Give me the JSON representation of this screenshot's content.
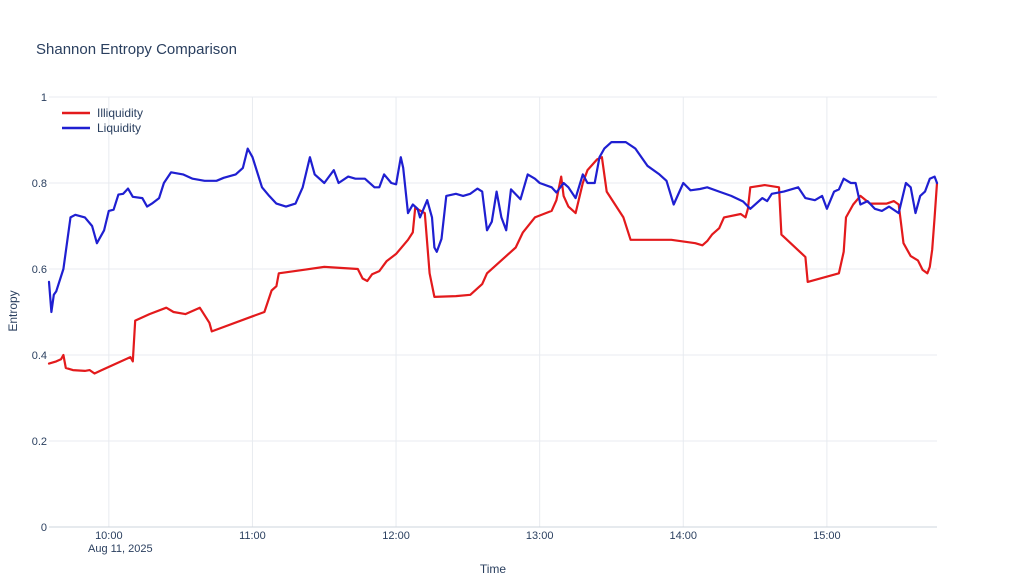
{
  "chart_data": {
    "type": "line",
    "title": "Shannon Entropy Comparison",
    "xlabel": "Time",
    "ylabel": "Entropy",
    "date_label": "Aug 11, 2025",
    "x_ticks": [
      "10:00",
      "11:00",
      "12:00",
      "13:00",
      "14:00",
      "15:00"
    ],
    "y_ticks": [
      "0",
      "0.2",
      "0.4",
      "0.6",
      "0.8",
      "1"
    ],
    "ylim": [
      0,
      1
    ],
    "xlim": [
      "09:35",
      "15:46"
    ],
    "grid": true,
    "legend_position": "top-left",
    "series": [
      {
        "name": "Illiquidity",
        "color": "#e31a1c",
        "points": [
          [
            "09:35",
            0.38
          ],
          [
            "09:38",
            0.385
          ],
          [
            "09:40",
            0.39
          ],
          [
            "09:41",
            0.4
          ],
          [
            "09:42",
            0.37
          ],
          [
            "09:45",
            0.365
          ],
          [
            "09:50",
            0.363
          ],
          [
            "09:52",
            0.365
          ],
          [
            "09:54",
            0.357
          ],
          [
            "09:57",
            0.365
          ],
          [
            "10:03",
            0.38
          ],
          [
            "10:09",
            0.395
          ],
          [
            "10:10",
            0.385
          ],
          [
            "10:11",
            0.48
          ],
          [
            "10:17",
            0.495
          ],
          [
            "10:24",
            0.51
          ],
          [
            "10:27",
            0.5
          ],
          [
            "10:32",
            0.495
          ],
          [
            "10:38",
            0.51
          ],
          [
            "10:42",
            0.475
          ],
          [
            "10:43",
            0.455
          ],
          [
            "11:00",
            0.49
          ],
          [
            "11:05",
            0.5
          ],
          [
            "11:08",
            0.55
          ],
          [
            "11:10",
            0.56
          ],
          [
            "11:11",
            0.59
          ],
          [
            "11:20",
            0.597
          ],
          [
            "11:30",
            0.605
          ],
          [
            "11:44",
            0.6
          ],
          [
            "11:46",
            0.578
          ],
          [
            "11:48",
            0.572
          ],
          [
            "11:50",
            0.588
          ],
          [
            "11:53",
            0.595
          ],
          [
            "11:56",
            0.618
          ],
          [
            "12:00",
            0.635
          ],
          [
            "12:05",
            0.668
          ],
          [
            "12:07",
            0.685
          ],
          [
            "12:08",
            0.742
          ],
          [
            "12:12",
            0.73
          ],
          [
            "12:14",
            0.59
          ],
          [
            "12:16",
            0.535
          ],
          [
            "12:25",
            0.537
          ],
          [
            "12:31",
            0.54
          ],
          [
            "12:36",
            0.565
          ],
          [
            "12:38",
            0.59
          ],
          [
            "12:50",
            0.65
          ],
          [
            "12:53",
            0.685
          ],
          [
            "12:58",
            0.72
          ],
          [
            "13:05",
            0.735
          ],
          [
            "13:07",
            0.76
          ],
          [
            "13:09",
            0.815
          ],
          [
            "13:10",
            0.77
          ],
          [
            "13:12",
            0.745
          ],
          [
            "13:15",
            0.73
          ],
          [
            "13:18",
            0.8
          ],
          [
            "13:20",
            0.83
          ],
          [
            "13:24",
            0.855
          ],
          [
            "13:26",
            0.86
          ],
          [
            "13:28",
            0.78
          ],
          [
            "13:35",
            0.72
          ],
          [
            "13:38",
            0.668
          ],
          [
            "13:55",
            0.668
          ],
          [
            "14:05",
            0.66
          ],
          [
            "14:08",
            0.655
          ],
          [
            "14:10",
            0.665
          ],
          [
            "14:12",
            0.68
          ],
          [
            "14:15",
            0.695
          ],
          [
            "14:17",
            0.72
          ],
          [
            "14:24",
            0.728
          ],
          [
            "14:26",
            0.72
          ],
          [
            "14:27",
            0.74
          ],
          [
            "14:28",
            0.79
          ],
          [
            "14:34",
            0.795
          ],
          [
            "14:40",
            0.79
          ],
          [
            "14:41",
            0.68
          ],
          [
            "14:51",
            0.628
          ],
          [
            "14:52",
            0.57
          ],
          [
            "15:05",
            0.59
          ],
          [
            "15:07",
            0.64
          ],
          [
            "15:08",
            0.72
          ],
          [
            "15:11",
            0.75
          ],
          [
            "15:14",
            0.77
          ],
          [
            "15:18",
            0.752
          ],
          [
            "15:22",
            0.752
          ],
          [
            "15:25",
            0.752
          ],
          [
            "15:28",
            0.758
          ],
          [
            "15:30",
            0.75
          ],
          [
            "15:32",
            0.66
          ],
          [
            "15:35",
            0.63
          ],
          [
            "15:38",
            0.62
          ],
          [
            "15:40",
            0.598
          ],
          [
            "15:42",
            0.59
          ],
          [
            "15:43",
            0.605
          ],
          [
            "15:44",
            0.645
          ],
          [
            "15:45",
            0.72
          ],
          [
            "15:46",
            0.8
          ]
        ]
      },
      {
        "name": "Liquidity",
        "color": "#1f1fd1",
        "points": [
          [
            "09:35",
            0.57
          ],
          [
            "09:36",
            0.5
          ],
          [
            "09:37",
            0.54
          ],
          [
            "09:38",
            0.548
          ],
          [
            "09:41",
            0.6
          ],
          [
            "09:44",
            0.72
          ],
          [
            "09:46",
            0.726
          ],
          [
            "09:50",
            0.72
          ],
          [
            "09:53",
            0.7
          ],
          [
            "09:55",
            0.66
          ],
          [
            "09:58",
            0.69
          ],
          [
            "10:00",
            0.735
          ],
          [
            "10:02",
            0.738
          ],
          [
            "10:04",
            0.773
          ],
          [
            "10:06",
            0.775
          ],
          [
            "10:08",
            0.787
          ],
          [
            "10:10",
            0.768
          ],
          [
            "10:14",
            0.765
          ],
          [
            "10:16",
            0.745
          ],
          [
            "10:18",
            0.752
          ],
          [
            "10:21",
            0.765
          ],
          [
            "10:23",
            0.8
          ],
          [
            "10:26",
            0.825
          ],
          [
            "10:31",
            0.82
          ],
          [
            "10:35",
            0.81
          ],
          [
            "10:40",
            0.805
          ],
          [
            "10:45",
            0.805
          ],
          [
            "10:48",
            0.812
          ],
          [
            "10:53",
            0.82
          ],
          [
            "10:56",
            0.835
          ],
          [
            "10:58",
            0.88
          ],
          [
            "11:00",
            0.86
          ],
          [
            "11:04",
            0.79
          ],
          [
            "11:07",
            0.77
          ],
          [
            "11:10",
            0.752
          ],
          [
            "11:14",
            0.745
          ],
          [
            "11:18",
            0.752
          ],
          [
            "11:21",
            0.79
          ],
          [
            "11:24",
            0.86
          ],
          [
            "11:26",
            0.82
          ],
          [
            "11:30",
            0.8
          ],
          [
            "11:34",
            0.83
          ],
          [
            "11:36",
            0.8
          ],
          [
            "11:40",
            0.815
          ],
          [
            "11:43",
            0.81
          ],
          [
            "11:47",
            0.81
          ],
          [
            "11:51",
            0.79
          ],
          [
            "11:53",
            0.79
          ],
          [
            "11:55",
            0.82
          ],
          [
            "11:58",
            0.8
          ],
          [
            "12:00",
            0.797
          ],
          [
            "12:02",
            0.86
          ],
          [
            "12:03",
            0.835
          ],
          [
            "12:05",
            0.73
          ],
          [
            "12:06",
            0.74
          ],
          [
            "12:07",
            0.75
          ],
          [
            "12:09",
            0.74
          ],
          [
            "12:10",
            0.72
          ],
          [
            "12:13",
            0.76
          ],
          [
            "12:15",
            0.72
          ],
          [
            "12:16",
            0.65
          ],
          [
            "12:17",
            0.64
          ],
          [
            "12:19",
            0.67
          ],
          [
            "12:21",
            0.77
          ],
          [
            "12:25",
            0.775
          ],
          [
            "12:28",
            0.77
          ],
          [
            "12:31",
            0.775
          ],
          [
            "12:34",
            0.787
          ],
          [
            "12:36",
            0.78
          ],
          [
            "12:38",
            0.69
          ],
          [
            "12:40",
            0.71
          ],
          [
            "12:42",
            0.78
          ],
          [
            "12:44",
            0.72
          ],
          [
            "12:46",
            0.69
          ],
          [
            "12:48",
            0.785
          ],
          [
            "12:52",
            0.762
          ],
          [
            "12:55",
            0.82
          ],
          [
            "12:58",
            0.81
          ],
          [
            "13:00",
            0.8
          ],
          [
            "13:05",
            0.79
          ],
          [
            "13:07",
            0.778
          ],
          [
            "13:10",
            0.8
          ],
          [
            "13:12",
            0.79
          ],
          [
            "13:15",
            0.765
          ],
          [
            "13:18",
            0.82
          ],
          [
            "13:20",
            0.8
          ],
          [
            "13:23",
            0.8
          ],
          [
            "13:25",
            0.86
          ],
          [
            "13:27",
            0.88
          ],
          [
            "13:30",
            0.895
          ],
          [
            "13:36",
            0.895
          ],
          [
            "13:40",
            0.88
          ],
          [
            "13:45",
            0.84
          ],
          [
            "13:50",
            0.82
          ],
          [
            "13:53",
            0.805
          ],
          [
            "13:56",
            0.75
          ],
          [
            "14:00",
            0.8
          ],
          [
            "14:03",
            0.783
          ],
          [
            "14:07",
            0.786
          ],
          [
            "14:10",
            0.79
          ],
          [
            "14:15",
            0.78
          ],
          [
            "14:20",
            0.77
          ],
          [
            "14:25",
            0.757
          ],
          [
            "14:28",
            0.74
          ],
          [
            "14:33",
            0.765
          ],
          [
            "14:35",
            0.758
          ],
          [
            "14:37",
            0.775
          ],
          [
            "14:42",
            0.78
          ],
          [
            "14:45",
            0.785
          ],
          [
            "14:48",
            0.79
          ],
          [
            "14:51",
            0.765
          ],
          [
            "14:55",
            0.76
          ],
          [
            "14:58",
            0.77
          ],
          [
            "15:00",
            0.74
          ],
          [
            "15:03",
            0.78
          ],
          [
            "15:05",
            0.785
          ],
          [
            "15:07",
            0.81
          ],
          [
            "15:10",
            0.8
          ],
          [
            "15:12",
            0.8
          ],
          [
            "15:14",
            0.75
          ],
          [
            "15:17",
            0.758
          ],
          [
            "15:20",
            0.74
          ],
          [
            "15:23",
            0.735
          ],
          [
            "15:26",
            0.745
          ],
          [
            "15:30",
            0.73
          ],
          [
            "15:33",
            0.8
          ],
          [
            "15:35",
            0.79
          ],
          [
            "15:37",
            0.73
          ],
          [
            "15:39",
            0.77
          ],
          [
            "15:41",
            0.78
          ],
          [
            "15:43",
            0.81
          ],
          [
            "15:45",
            0.815
          ],
          [
            "15:46",
            0.8
          ]
        ]
      }
    ]
  }
}
